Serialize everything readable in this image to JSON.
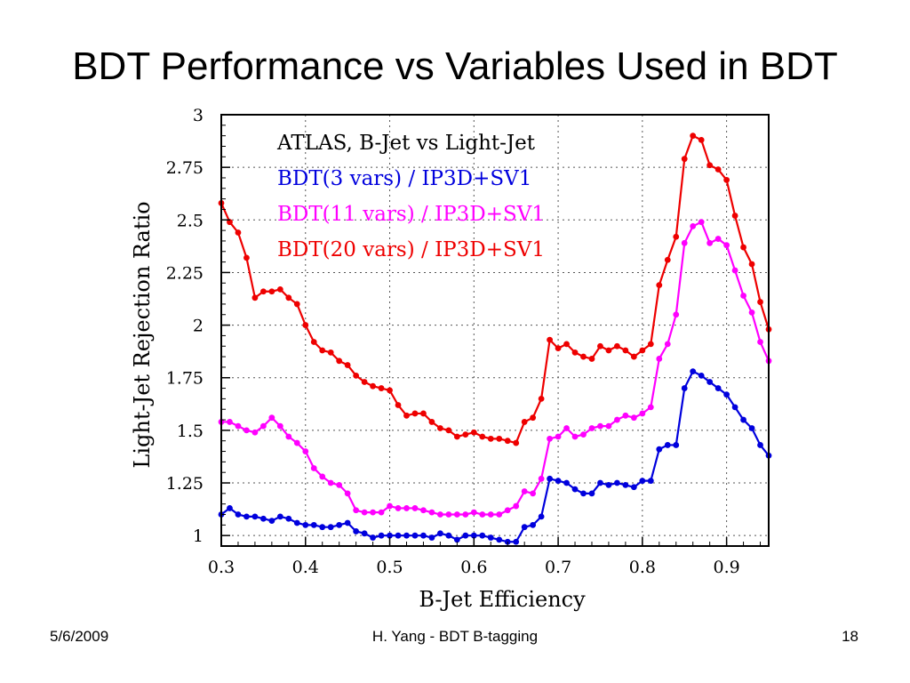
{
  "slide": {
    "title": "BDT Performance vs Variables Used in BDT",
    "footer": {
      "date": "5/6/2009",
      "author": "H. Yang - BDT B-tagging",
      "page": "18"
    }
  },
  "chart_data": {
    "type": "line",
    "title": "",
    "xlabel": "B-Jet Efficiency",
    "ylabel": "Light-Jet Rejection Ratio",
    "xlim": [
      0.3,
      0.95
    ],
    "ylim": [
      0.95,
      3.0
    ],
    "xticks": [
      0.3,
      0.4,
      0.5,
      0.6,
      0.7,
      0.8,
      0.9
    ],
    "xtick_labels": [
      "0.3",
      "0.4",
      "0.5",
      "0.6",
      "0.7",
      "0.8",
      "0.9"
    ],
    "yticks": [
      1,
      1.25,
      1.5,
      1.75,
      2,
      2.25,
      2.5,
      2.75,
      3
    ],
    "ytick_labels": [
      "1",
      "1.25",
      "1.5",
      "1.75",
      "2",
      "2.25",
      "2.5",
      "2.75",
      "3"
    ],
    "grid": true,
    "legend_header": "ATLAS, B-Jet vs Light-Jet",
    "legend_placement": "top-center",
    "x": [
      0.3,
      0.31,
      0.32,
      0.33,
      0.34,
      0.35,
      0.36,
      0.37,
      0.38,
      0.39,
      0.4,
      0.41,
      0.42,
      0.43,
      0.44,
      0.45,
      0.46,
      0.47,
      0.48,
      0.49,
      0.5,
      0.51,
      0.52,
      0.53,
      0.54,
      0.55,
      0.56,
      0.57,
      0.58,
      0.59,
      0.6,
      0.61,
      0.62,
      0.63,
      0.64,
      0.65,
      0.66,
      0.67,
      0.68,
      0.69,
      0.7,
      0.71,
      0.72,
      0.73,
      0.74,
      0.75,
      0.76,
      0.77,
      0.78,
      0.79,
      0.8,
      0.81,
      0.82,
      0.83,
      0.84,
      0.85,
      0.86,
      0.87,
      0.88,
      0.89,
      0.9,
      0.91,
      0.92,
      0.93,
      0.94,
      0.95
    ],
    "series": [
      {
        "name": "BDT(3 vars) / IP3D+SV1",
        "color": "#0000dd",
        "values": [
          1.1,
          1.13,
          1.1,
          1.09,
          1.09,
          1.08,
          1.07,
          1.09,
          1.08,
          1.06,
          1.05,
          1.05,
          1.04,
          1.04,
          1.05,
          1.06,
          1.02,
          1.01,
          0.99,
          1.0,
          1.0,
          1.0,
          1.0,
          1.0,
          1.0,
          0.99,
          1.01,
          1.0,
          0.98,
          1.0,
          1.0,
          1.0,
          0.99,
          0.98,
          0.97,
          0.97,
          1.04,
          1.05,
          1.09,
          1.27,
          1.26,
          1.25,
          1.22,
          1.2,
          1.2,
          1.25,
          1.24,
          1.25,
          1.24,
          1.23,
          1.26,
          1.26,
          1.41,
          1.43,
          1.43,
          1.7,
          1.78,
          1.76,
          1.73,
          1.7,
          1.67,
          1.61,
          1.55,
          1.51,
          1.43,
          1.38
        ]
      },
      {
        "name": "BDT(11 vars) / IP3D+SV1",
        "color": "#ff00ff",
        "values": [
          1.54,
          1.54,
          1.52,
          1.5,
          1.49,
          1.52,
          1.56,
          1.52,
          1.47,
          1.44,
          1.4,
          1.32,
          1.28,
          1.25,
          1.24,
          1.2,
          1.12,
          1.11,
          1.11,
          1.11,
          1.14,
          1.13,
          1.13,
          1.13,
          1.12,
          1.11,
          1.1,
          1.1,
          1.1,
          1.1,
          1.11,
          1.1,
          1.1,
          1.1,
          1.12,
          1.14,
          1.21,
          1.2,
          1.27,
          1.46,
          1.47,
          1.51,
          1.47,
          1.48,
          1.51,
          1.52,
          1.52,
          1.55,
          1.57,
          1.56,
          1.58,
          1.61,
          1.84,
          1.91,
          2.05,
          2.39,
          2.47,
          2.49,
          2.39,
          2.41,
          2.38,
          2.26,
          2.14,
          2.06,
          1.92,
          1.83
        ]
      },
      {
        "name": "BDT(20 vars) / IP3D+SV1",
        "color": "#ee0000",
        "values": [
          2.58,
          2.49,
          2.44,
          2.32,
          2.13,
          2.16,
          2.16,
          2.17,
          2.13,
          2.1,
          2.0,
          1.92,
          1.88,
          1.87,
          1.83,
          1.81,
          1.76,
          1.73,
          1.71,
          1.7,
          1.69,
          1.62,
          1.57,
          1.58,
          1.58,
          1.54,
          1.51,
          1.5,
          1.47,
          1.48,
          1.49,
          1.47,
          1.46,
          1.46,
          1.45,
          1.44,
          1.54,
          1.56,
          1.65,
          1.93,
          1.89,
          1.91,
          1.87,
          1.85,
          1.84,
          1.9,
          1.88,
          1.9,
          1.88,
          1.85,
          1.88,
          1.91,
          2.19,
          2.31,
          2.42,
          2.79,
          2.9,
          2.88,
          2.76,
          2.74,
          2.69,
          2.52,
          2.37,
          2.29,
          2.11,
          1.98
        ]
      }
    ]
  }
}
